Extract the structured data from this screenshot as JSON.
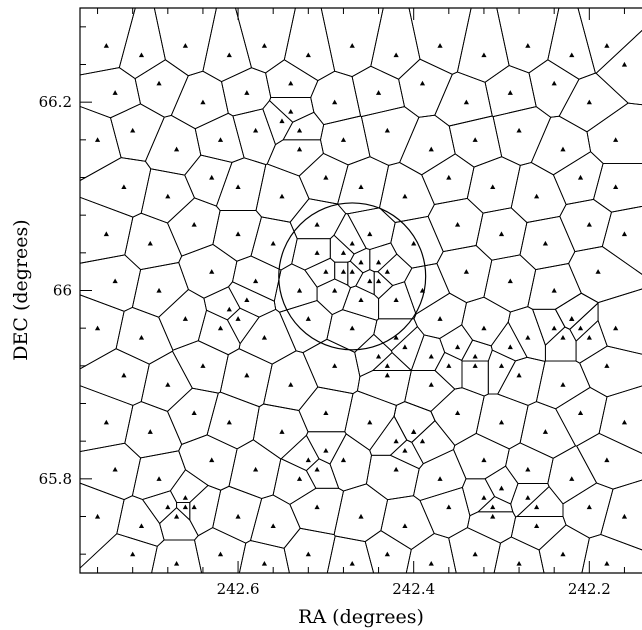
{
  "chart_data": {
    "type": "scatter",
    "subtype": "voronoi-tessellation",
    "title": "",
    "xlabel": "RA (degrees)",
    "ylabel": "DEC (degrees)",
    "xlim": [
      242.78,
      242.14
    ],
    "ylim": [
      65.7,
      66.3
    ],
    "x_reversed": true,
    "grid": false,
    "xticks": [
      {
        "value": 242.6,
        "label": "242.6"
      },
      {
        "value": 242.4,
        "label": "242.4"
      },
      {
        "value": 242.2,
        "label": "242.2"
      }
    ],
    "yticks": [
      {
        "value": 65.8,
        "label": "65.8"
      },
      {
        "value": 66.0,
        "label": "66"
      },
      {
        "value": 66.2,
        "label": "66.2"
      }
    ],
    "marker": "triangle",
    "annotations": [
      {
        "type": "circle",
        "center_ra": 242.47,
        "center_dec": 66.015,
        "radius_dec": 0.078
      }
    ],
    "points": {
      "description": "source positions used for the Voronoi cells (approximate, read from figure)",
      "ra": [
        242.75,
        242.71,
        242.66,
        242.61,
        242.57,
        242.52,
        242.47,
        242.42,
        242.37,
        242.32,
        242.27,
        242.22,
        242.18,
        242.16,
        242.74,
        242.69,
        242.64,
        242.59,
        242.54,
        242.49,
        242.44,
        242.39,
        242.34,
        242.29,
        242.24,
        242.2,
        242.76,
        242.72,
        242.67,
        242.62,
        242.58,
        242.53,
        242.48,
        242.43,
        242.38,
        242.33,
        242.28,
        242.23,
        242.17,
        242.73,
        242.68,
        242.63,
        242.6,
        242.55,
        242.5,
        242.46,
        242.41,
        242.36,
        242.31,
        242.26,
        242.21,
        242.17,
        242.75,
        242.7,
        242.65,
        242.6,
        242.56,
        242.51,
        242.45,
        242.4,
        242.35,
        242.3,
        242.25,
        242.2,
        242.16,
        242.74,
        242.69,
        242.63,
        242.58,
        242.53,
        242.48,
        242.44,
        242.39,
        242.34,
        242.29,
        242.24,
        242.19,
        242.76,
        242.71,
        242.66,
        242.62,
        242.57,
        242.52,
        242.47,
        242.42,
        242.37,
        242.32,
        242.27,
        242.22,
        242.17,
        242.73,
        242.68,
        242.64,
        242.59,
        242.54,
        242.49,
        242.43,
        242.38,
        242.33,
        242.28,
        242.23,
        242.18,
        242.75,
        242.7,
        242.65,
        242.61,
        242.55,
        242.5,
        242.45,
        242.4,
        242.35,
        242.3,
        242.25,
        242.21,
        242.16,
        242.74,
        242.69,
        242.63,
        242.58,
        242.53,
        242.48,
        242.42,
        242.37,
        242.32,
        242.27,
        242.22,
        242.18,
        242.76,
        242.71,
        242.66,
        242.6,
        242.56,
        242.51,
        242.46,
        242.41,
        242.36,
        242.31,
        242.26,
        242.2,
        242.16,
        242.72,
        242.67,
        242.62,
        242.57,
        242.52,
        242.47,
        242.43,
        242.38,
        242.33,
        242.28,
        242.23,
        242.18,
        242.47,
        242.46,
        242.48,
        242.45,
        242.44,
        242.5,
        242.49,
        242.43,
        242.42,
        242.51,
        242.46,
        242.47,
        242.61,
        242.6,
        242.59,
        242.44,
        242.43,
        242.41,
        242.38,
        242.36,
        242.35,
        242.33,
        242.3,
        242.29,
        242.42,
        242.41,
        242.4,
        242.39,
        242.52,
        242.51,
        242.5,
        242.32,
        242.31,
        242.3,
        242.27,
        242.26,
        242.68,
        242.67,
        242.66,
        242.65,
        242.55,
        242.54,
        242.53,
        242.24,
        242.23,
        242.22,
        242.21,
        242.2
      ],
      "dec": [
        66.26,
        66.25,
        66.26,
        66.25,
        66.26,
        66.25,
        66.26,
        66.25,
        66.26,
        66.25,
        66.26,
        66.25,
        66.26,
        66.24,
        66.21,
        66.22,
        66.2,
        66.21,
        66.22,
        66.2,
        66.21,
        66.22,
        66.2,
        66.21,
        66.22,
        66.2,
        66.16,
        66.17,
        66.15,
        66.16,
        66.17,
        66.15,
        66.16,
        66.17,
        66.15,
        66.16,
        66.17,
        66.15,
        66.16,
        66.11,
        66.1,
        66.12,
        66.11,
        66.1,
        66.12,
        66.11,
        66.1,
        66.12,
        66.11,
        66.1,
        66.12,
        66.11,
        66.06,
        66.05,
        66.07,
        66.06,
        66.05,
        66.07,
        66.06,
        66.05,
        66.07,
        66.06,
        66.05,
        66.07,
        66.06,
        66.01,
        66.0,
        66.02,
        66.01,
        66.0,
        66.02,
        66.01,
        66.0,
        66.02,
        66.01,
        66.0,
        66.02,
        65.96,
        65.95,
        65.97,
        65.96,
        65.95,
        65.97,
        65.96,
        65.95,
        65.97,
        65.96,
        65.95,
        65.97,
        65.96,
        65.91,
        65.9,
        65.92,
        65.91,
        65.9,
        65.92,
        65.91,
        65.9,
        65.92,
        65.91,
        65.9,
        65.92,
        65.86,
        65.85,
        65.87,
        65.86,
        65.85,
        65.87,
        65.86,
        65.85,
        65.87,
        65.86,
        65.85,
        65.87,
        65.86,
        65.81,
        65.8,
        65.82,
        65.81,
        65.8,
        65.82,
        65.81,
        65.8,
        65.82,
        65.81,
        65.8,
        65.82,
        65.76,
        65.75,
        65.77,
        65.76,
        65.75,
        65.77,
        65.76,
        65.75,
        65.77,
        65.76,
        65.75,
        65.77,
        65.76,
        65.72,
        65.71,
        65.72,
        65.71,
        65.72,
        65.71,
        65.72,
        65.71,
        65.72,
        65.71,
        65.72,
        65.71,
        66.02,
        66.03,
        66.04,
        66.01,
        66.03,
        66.02,
        66.0,
        66.02,
        65.99,
        66.04,
        65.99,
        66.05,
        65.98,
        65.97,
        65.99,
        65.93,
        65.92,
        65.94,
        65.93,
        65.92,
        65.94,
        65.93,
        65.92,
        65.94,
        65.84,
        65.83,
        65.85,
        65.84,
        65.82,
        65.81,
        65.83,
        65.78,
        65.77,
        65.79,
        65.78,
        65.77,
        65.77,
        65.76,
        65.78,
        65.77,
        66.18,
        66.19,
        66.17,
        65.96,
        65.95,
        65.97,
        65.96,
        65.95
      ]
    }
  }
}
